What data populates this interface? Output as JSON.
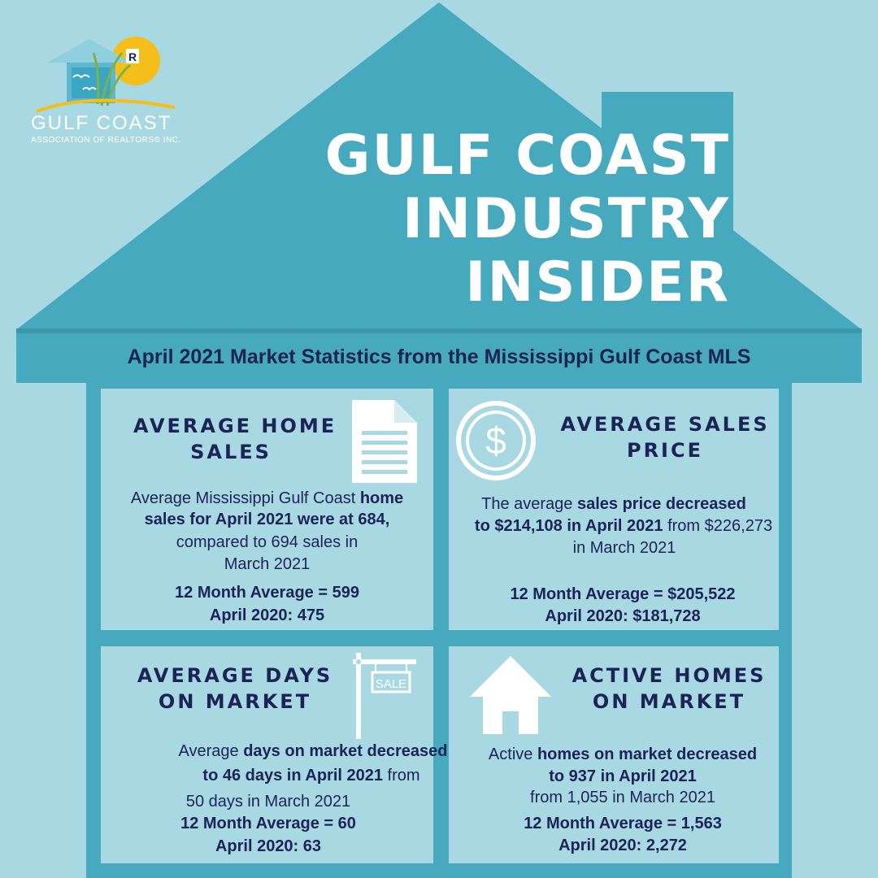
{
  "logo": {
    "name": "GULF COAST",
    "sub": "ASSOCIATION OF REALTORS® INC.",
    "badge": "R"
  },
  "title": [
    "GULF COAST",
    "INDUSTRY",
    "INSIDER"
  ],
  "subtitle": "April 2021 Market Statistics from the Mississippi Gulf Coast MLS",
  "colors": {
    "background": "#a8d8e1",
    "house": "#46a9bd",
    "navy": "#1b2456",
    "white": "#ffffff",
    "sun": "#f5bf1b"
  },
  "cards": {
    "home_sales": {
      "heading": [
        "AVERAGE HOME",
        "SALES"
      ],
      "body1_pre": "Average Mississippi Gulf Coast ",
      "body1_bold": "home",
      "body2": "sales for April 2021 were at 684,",
      "body3": "compared to 694 sales in",
      "body4": "March 2021",
      "avg": "12 Month Average = 599",
      "prior": "April 2020: 475",
      "icon": "document-icon"
    },
    "sales_price": {
      "heading": [
        "AVERAGE SALES",
        "PRICE"
      ],
      "body1_pre": "The average ",
      "body1_bold": "sales price decreased",
      "body2_bold": "to $214,108 in April 2021",
      "body2_post": " from $226,273",
      "body3": "in March 2021",
      "avg": "12 Month Average = $205,522",
      "prior": "April 2020: $181,728",
      "icon": "dollar-coin-icon",
      "icon_glyph": "$"
    },
    "days_market": {
      "heading": [
        "AVERAGE DAYS",
        "ON MARKET"
      ],
      "body1_pre": "Average ",
      "body1_bold": "days on market decreased",
      "body2_bold": "to 46 days in April 2021",
      "body2_post": " from",
      "body3": "50 days in March 2021",
      "avg": "12 Month Average = 60",
      "prior": "April 2020: 63",
      "icon": "sale-sign-icon",
      "sign_text": "SALE"
    },
    "active_homes": {
      "heading": [
        "ACTIVE HOMES",
        "ON MARKET"
      ],
      "body1_pre": "Active ",
      "body1_bold": "homes on market decreased",
      "body2_bold": "to 937 in April 2021",
      "body3": "from 1,055 in March 2021",
      "avg": "12 Month Average = 1,563",
      "prior": "April 2020: 2,272",
      "icon": "house-icon"
    }
  }
}
